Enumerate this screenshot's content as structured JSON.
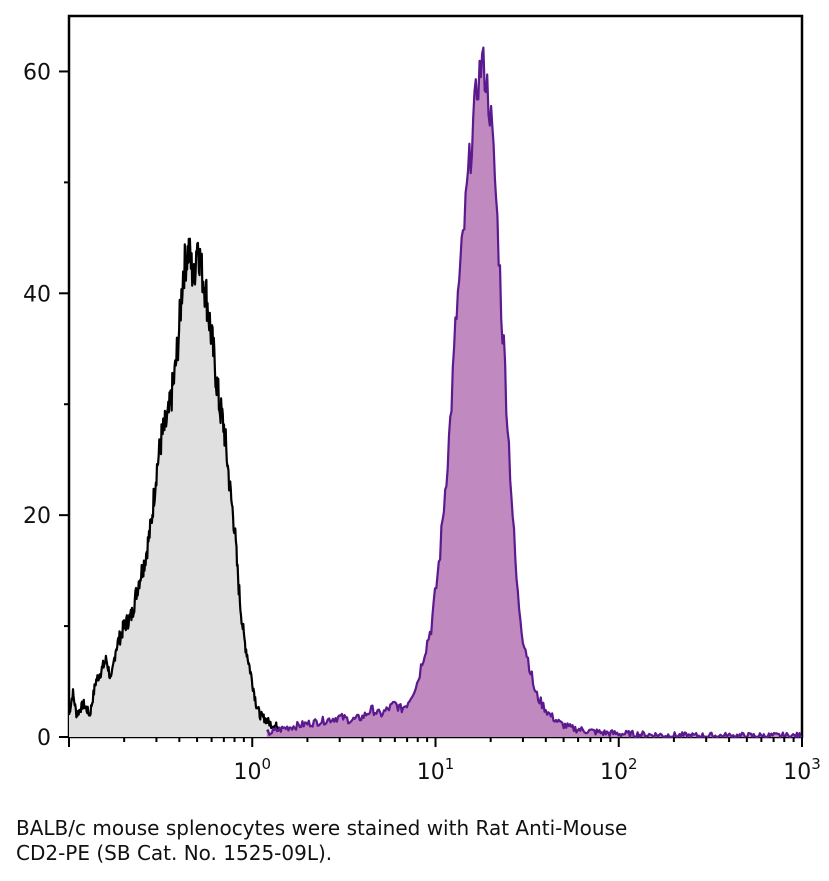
{
  "chart_data": {
    "type": "area",
    "title": "",
    "xlabel": "",
    "ylabel": "",
    "x_scale": "log",
    "xlim": [
      0.1,
      1000
    ],
    "ylim": [
      0,
      65
    ],
    "grid": false,
    "legend": "none",
    "x_ticks": [
      {
        "value": 1,
        "base": "10",
        "exp": "0"
      },
      {
        "value": 10,
        "base": "10",
        "exp": "1"
      },
      {
        "value": 100,
        "base": "10",
        "exp": "2"
      },
      {
        "value": 1000,
        "base": "10",
        "exp": "3"
      }
    ],
    "y_ticks": [
      {
        "value": 0,
        "label": "0"
      },
      {
        "value": 20,
        "label": "20"
      },
      {
        "value": 40,
        "label": "40"
      },
      {
        "value": 60,
        "label": "60"
      }
    ],
    "series": [
      {
        "color_fill": "#e0e0e0",
        "color_line": "#000000",
        "x": [
          0.1,
          0.105,
          0.11,
          0.12,
          0.13,
          0.14,
          0.15,
          0.16,
          0.17,
          0.18,
          0.2,
          0.22,
          0.24,
          0.26,
          0.28,
          0.3,
          0.32,
          0.35,
          0.38,
          0.4,
          0.42,
          0.45,
          0.48,
          0.5,
          0.53,
          0.56,
          0.6,
          0.63,
          0.66,
          0.7,
          0.73,
          0.76,
          0.8,
          0.83,
          0.86,
          0.9,
          0.95,
          1.0,
          1.05,
          1.1,
          1.2,
          1.3,
          1.4,
          1.5,
          1.7,
          2.0
        ],
        "y": [
          2,
          4,
          2,
          3,
          2,
          5,
          6,
          7,
          5,
          8,
          10,
          11,
          14,
          16,
          19,
          24,
          27,
          29,
          33,
          37,
          42,
          44,
          41,
          45,
          42,
          40,
          36,
          33,
          30,
          28,
          25,
          22,
          19,
          15,
          12,
          9,
          7,
          5,
          3,
          2,
          1.5,
          1,
          1,
          0.5,
          0.2,
          0
        ]
      },
      {
        "color_fill": "#c08ac0",
        "color_line": "#5b1a8e",
        "x": [
          1.2,
          1.5,
          2.0,
          2.5,
          3.0,
          3.5,
          4.0,
          4.5,
          5.0,
          5.5,
          6.0,
          6.5,
          7.0,
          7.5,
          8.0,
          8.5,
          9.0,
          9.5,
          10,
          10.5,
          11,
          11.5,
          12,
          12.5,
          13,
          14,
          15,
          16,
          17,
          18,
          19,
          20,
          21,
          22,
          23,
          24,
          25,
          26,
          27,
          28,
          30,
          32,
          35,
          38,
          42,
          48,
          55,
          65,
          80,
          100,
          150,
          250,
          500,
          1000
        ],
        "y": [
          0.3,
          0.8,
          1.2,
          1.5,
          1.8,
          1.5,
          1.8,
          2.5,
          2.0,
          2.5,
          3.0,
          2.5,
          3.0,
          4.0,
          5.0,
          7.0,
          8.5,
          10,
          13,
          16,
          20,
          24,
          28,
          33,
          38,
          44,
          50,
          55,
          59,
          61,
          59,
          56,
          51,
          45,
          38,
          33,
          27,
          22,
          17,
          13,
          9,
          7,
          4,
          3,
          2,
          1.2,
          0.8,
          0.6,
          0.4,
          0.3,
          0.2,
          0.1,
          0.1,
          0.1
        ]
      }
    ]
  },
  "caption": {
    "line1": "BALB/c mouse splenocytes were stained with Rat Anti-Mouse",
    "line2": "CD2-PE (SB Cat. No. 1525-09L)."
  }
}
